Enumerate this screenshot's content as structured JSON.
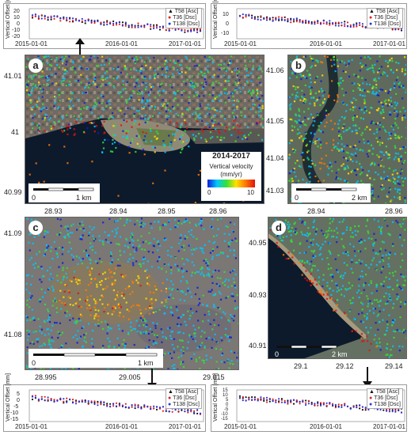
{
  "timeseries": {
    "ylabel": "Vertical Offset [mm]",
    "legend": [
      "T58 [Asc]",
      "T36 [Dsc]",
      "T138 [Dsc]"
    ],
    "legend_colors": [
      "#111111",
      "#e02020",
      "#2a36e0"
    ],
    "x_ticks": [
      "2015-01-01",
      "2016-01-01",
      "2017-01-01"
    ],
    "top_left_yticks": [
      "20",
      "10",
      "0",
      "-10",
      "-20"
    ],
    "top_right_yticks": [
      "10",
      "0",
      "-10"
    ],
    "bottom_left_yticks": [
      "5",
      "0",
      "-5",
      "-10",
      "-15"
    ],
    "bottom_right_yticks": [
      "15",
      "10",
      "5",
      "0",
      "-5",
      "-10",
      "-15"
    ]
  },
  "panels": {
    "a": {
      "label": "a",
      "yticks": [
        "41.01",
        "41",
        "40.99"
      ],
      "xticks": [
        "28.93",
        "28.94",
        "28.95",
        "28.96"
      ],
      "scale_start": "0",
      "scale_end": "1 km"
    },
    "b": {
      "label": "b",
      "yticks": [
        "41.06",
        "41.05",
        "41.04",
        "41.03"
      ],
      "xticks": [
        "28.94",
        "28.96"
      ],
      "scale_start": "0",
      "scale_end": "2 km"
    },
    "c": {
      "label": "c",
      "yticks": [
        "41.09",
        "41.08"
      ],
      "xticks": [
        "28.995",
        "29.005",
        "29.015"
      ],
      "scale_start": "0",
      "scale_end": "1 km"
    },
    "d": {
      "label": "d",
      "yticks": [
        "40.95",
        "40.93",
        "40.91"
      ],
      "xticks": [
        "29.1",
        "29.12",
        "29.14"
      ],
      "scale_start": "0",
      "scale_end": "2 km"
    }
  },
  "legend": {
    "period": "2014-2017",
    "title": "Vertical velocity",
    "unit": "(mm/yr)",
    "min": "0",
    "max": "10",
    "colors": [
      "#0a1cd8",
      "#00c8ff",
      "#36e03a",
      "#ffe000",
      "#ff7a00",
      "#e01010"
    ]
  }
}
